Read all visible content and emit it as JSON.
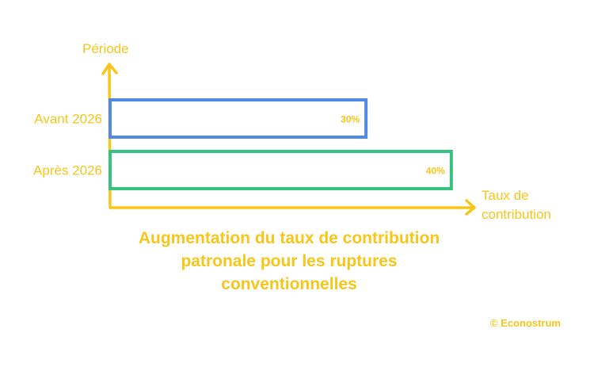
{
  "chart_data": {
    "type": "bar",
    "orientation": "horizontal",
    "title": "Augmentation du taux de contribution patronale pour les ruptures conventionnelles",
    "xlabel": "Taux de contribution",
    "ylabel": "Période",
    "categories": [
      "Avant 2026",
      "Après 2026"
    ],
    "values": [
      30,
      40
    ],
    "data_labels": [
      "30%",
      "40%"
    ],
    "bar_colors": [
      "#5089E6",
      "#36C37F"
    ],
    "axis_color": "#F8C61A",
    "grid": false
  },
  "credit": "© Econostrum"
}
